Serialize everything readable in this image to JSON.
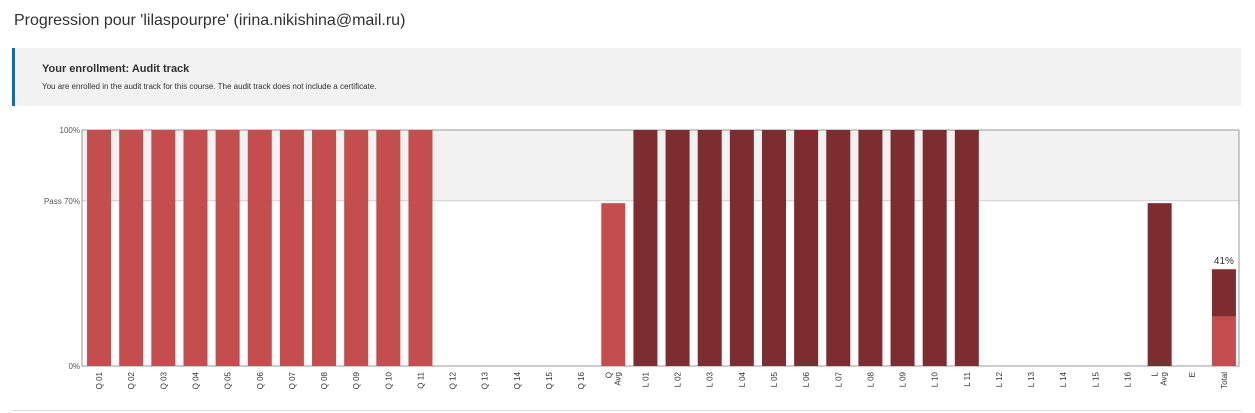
{
  "page": {
    "title": "Progression pour 'lilaspourpre' (irina.nikishina@mail.ru)"
  },
  "enrollment": {
    "title": "Your enrollment: Audit track",
    "message": "You are enrolled in the audit track for this course. The audit track does not include a certificate."
  },
  "chart_data": {
    "type": "bar",
    "y_ticks": [
      {
        "value": 100,
        "label": "100%"
      },
      {
        "value": 70,
        "label": "Pass 70%"
      },
      {
        "value": 0,
        "label": "0%"
      }
    ],
    "ylim": [
      0,
      100
    ],
    "pass_threshold": 70,
    "colors": {
      "quiz": "#c44d4e",
      "lab": "#7d2c2f",
      "band": "#f2f2f2"
    },
    "bars": [
      {
        "label": "Q 01",
        "value": 100,
        "group": "quiz"
      },
      {
        "label": "Q 02",
        "value": 100,
        "group": "quiz"
      },
      {
        "label": "Q 03",
        "value": 100,
        "group": "quiz"
      },
      {
        "label": "Q 04",
        "value": 100,
        "group": "quiz"
      },
      {
        "label": "Q 05",
        "value": 100,
        "group": "quiz"
      },
      {
        "label": "Q 06",
        "value": 100,
        "group": "quiz"
      },
      {
        "label": "Q 07",
        "value": 100,
        "group": "quiz"
      },
      {
        "label": "Q 08",
        "value": 100,
        "group": "quiz"
      },
      {
        "label": "Q 09",
        "value": 100,
        "group": "quiz"
      },
      {
        "label": "Q 10",
        "value": 100,
        "group": "quiz"
      },
      {
        "label": "Q 11",
        "value": 100,
        "group": "quiz"
      },
      {
        "label": "Q 12",
        "value": 0,
        "group": "quiz"
      },
      {
        "label": "Q 13",
        "value": 0,
        "group": "quiz"
      },
      {
        "label": "Q 14",
        "value": 0,
        "group": "quiz"
      },
      {
        "label": "Q 15",
        "value": 0,
        "group": "quiz"
      },
      {
        "label": "Q 16",
        "value": 0,
        "group": "quiz"
      },
      {
        "label": "Q Avg",
        "value": 69,
        "group": "quiz"
      },
      {
        "label": "L 01",
        "value": 100,
        "group": "lab"
      },
      {
        "label": "L 02",
        "value": 100,
        "group": "lab"
      },
      {
        "label": "L 03",
        "value": 100,
        "group": "lab"
      },
      {
        "label": "L 04",
        "value": 100,
        "group": "lab"
      },
      {
        "label": "L 05",
        "value": 100,
        "group": "lab"
      },
      {
        "label": "L 06",
        "value": 100,
        "group": "lab"
      },
      {
        "label": "L 07",
        "value": 100,
        "group": "lab"
      },
      {
        "label": "L 08",
        "value": 100,
        "group": "lab"
      },
      {
        "label": "L 09",
        "value": 100,
        "group": "lab"
      },
      {
        "label": "L 10",
        "value": 100,
        "group": "lab"
      },
      {
        "label": "L 11",
        "value": 100,
        "group": "lab"
      },
      {
        "label": "L 12",
        "value": 0,
        "group": "lab"
      },
      {
        "label": "L 13",
        "value": 0,
        "group": "lab"
      },
      {
        "label": "L 14",
        "value": 0,
        "group": "lab"
      },
      {
        "label": "L 15",
        "value": 0,
        "group": "lab"
      },
      {
        "label": "L 16",
        "value": 0,
        "group": "lab"
      },
      {
        "label": "L Avg",
        "value": 69,
        "group": "lab"
      },
      {
        "label": "E",
        "value": 0,
        "group": "exam"
      },
      {
        "label": "Total",
        "value": 41,
        "group": "total",
        "stack": [
          {
            "group": "quiz",
            "value": 21
          },
          {
            "group": "lab",
            "value": 20
          }
        ],
        "value_label": "41%"
      }
    ]
  }
}
